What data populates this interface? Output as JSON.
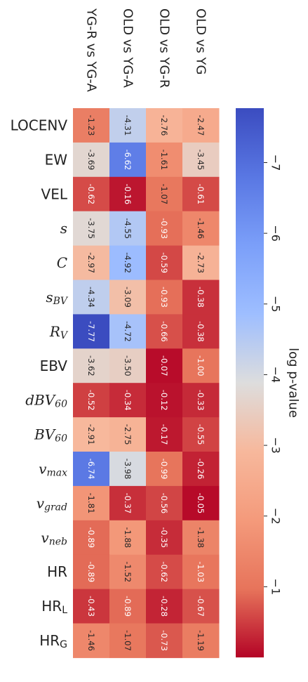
{
  "chart_data": {
    "type": "heatmap",
    "columns": [
      "YG-R vs YG-A",
      "OLD vs YG-A",
      "OLD vs YG-R",
      "OLD vs YG"
    ],
    "rows": [
      {
        "label": "LOCENV",
        "base": "LOCENV",
        "sub": "",
        "math": false
      },
      {
        "label": "EW",
        "base": "EW",
        "sub": "",
        "math": false
      },
      {
        "label": "VEL",
        "base": "VEL",
        "sub": "",
        "math": false
      },
      {
        "label": "s",
        "base": "s",
        "sub": "",
        "math": true
      },
      {
        "label": "C",
        "base": "C",
        "sub": "",
        "math": true
      },
      {
        "label": "s_BV",
        "base": "s",
        "sub": "BV",
        "math": true
      },
      {
        "label": "R_V",
        "base": "R",
        "sub": "V",
        "math": true
      },
      {
        "label": "EBV",
        "base": "EBV",
        "sub": "",
        "math": false
      },
      {
        "label": "dBV_60",
        "base": "dBV",
        "sub": "60",
        "math": true
      },
      {
        "label": "BV_60",
        "base": "BV",
        "sub": "60",
        "math": true
      },
      {
        "label": "v_max",
        "base": "v",
        "sub": "max",
        "math": true
      },
      {
        "label": "v_grad",
        "base": "v",
        "sub": "grad",
        "math": true
      },
      {
        "label": "v_neb",
        "base": "v",
        "sub": "neb",
        "math": true
      },
      {
        "label": "HR",
        "base": "HR",
        "sub": "",
        "math": false
      },
      {
        "label": "HR_L",
        "base": "HR",
        "sub": "L",
        "math": false
      },
      {
        "label": "HR_G",
        "base": "HR",
        "sub": "G",
        "math": false
      }
    ],
    "values": [
      [
        -1.23,
        -4.31,
        -2.76,
        -2.47
      ],
      [
        -3.69,
        -6.62,
        -1.61,
        -3.45
      ],
      [
        -0.62,
        -0.16,
        -1.07,
        -0.61
      ],
      [
        -3.75,
        -4.55,
        -0.93,
        -1.46
      ],
      [
        -2.97,
        -4.92,
        -0.59,
        -2.73
      ],
      [
        -4.34,
        -3.09,
        -0.93,
        -0.38
      ],
      [
        -7.77,
        -4.72,
        -0.66,
        -0.38
      ],
      [
        -3.62,
        -3.5,
        -0.07,
        -1.0
      ],
      [
        -0.52,
        -0.34,
        -0.12,
        -0.33
      ],
      [
        -2.91,
        -2.75,
        -0.17,
        -0.55
      ],
      [
        -6.74,
        -3.98,
        -0.99,
        -0.26
      ],
      [
        -1.81,
        -0.37,
        -0.56,
        -0.05
      ],
      [
        -0.89,
        -1.88,
        -0.35,
        -1.38
      ],
      [
        -0.89,
        -1.52,
        -0.62,
        -1.03
      ],
      [
        -0.43,
        -0.89,
        -0.28,
        -0.67
      ],
      [
        -1.46,
        -1.07,
        -0.73,
        -1.19
      ]
    ],
    "value_labels": [
      [
        "-1.23",
        "-4.31",
        "-2.76",
        "-2.47"
      ],
      [
        "-3.69",
        "-6.62",
        "-1.61",
        "-3.45"
      ],
      [
        "-0.62",
        "-0.16",
        "-1.07",
        "-0.61"
      ],
      [
        "-3.75",
        "-4.55",
        "-0.93",
        "-1.46"
      ],
      [
        "-2.97",
        "-4.92",
        "-0.59",
        "-2.73"
      ],
      [
        "-4.34",
        "-3.09",
        "-0.93",
        "-0.38"
      ],
      [
        "-7.77",
        "-4.72",
        "-0.66",
        "-0.38"
      ],
      [
        "-3.62",
        "-3.50",
        "-0.07",
        "-1.00"
      ],
      [
        "-0.52",
        "-0.34",
        "-0.12",
        "-0.33"
      ],
      [
        "-2.91",
        "-2.75",
        "-0.17",
        "-0.55"
      ],
      [
        "-6.74",
        "-3.98",
        "-0.99",
        "-0.26"
      ],
      [
        "-1.81",
        "-0.37",
        "-0.56",
        "-0.05"
      ],
      [
        "-0.89",
        "-1.88",
        "-0.35",
        "-1.38"
      ],
      [
        "-0.89",
        "-1.52",
        "-0.62",
        "-1.03"
      ],
      [
        "-0.43",
        "-0.89",
        "-0.28",
        "-0.67"
      ],
      [
        "-1.46",
        "-1.07",
        "-0.73",
        "-1.19"
      ]
    ],
    "colorbar": {
      "label": "log p-value",
      "range": [
        -7.77,
        0
      ],
      "ticks": [
        -7,
        -6,
        -5,
        -4,
        -3,
        -2,
        -1
      ],
      "tick_labels": [
        "−7",
        "−6",
        "−5",
        "−4",
        "−3",
        "−2",
        "−1"
      ],
      "colormap": "coolwarm_r",
      "low_color": "#3b4cc0",
      "mid_color": "#dddddd",
      "high_color": "#b40426"
    },
    "orientation": "rotated 90 degrees",
    "grid": false
  }
}
